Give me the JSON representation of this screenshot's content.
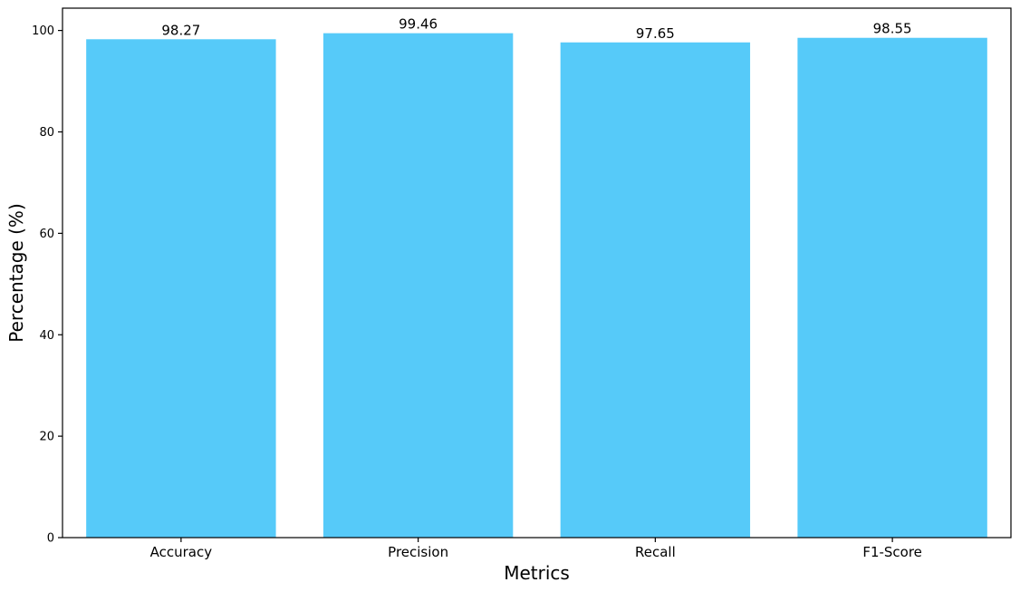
{
  "chart_data": {
    "type": "bar",
    "title": "",
    "xlabel": "Metrics",
    "ylabel": "Percentage (%)",
    "categories": [
      "Accuracy",
      "Precision",
      "Recall",
      "F1-Score"
    ],
    "values": [
      98.27,
      99.46,
      97.65,
      98.55
    ],
    "value_labels": [
      "98.27",
      "99.46",
      "97.65",
      "98.55"
    ],
    "ylim": [
      0,
      104.4
    ],
    "yticks": [
      0,
      20,
      40,
      60,
      80,
      100
    ],
    "bar_color": "#56CAF9",
    "grid": false,
    "legend": "none"
  }
}
